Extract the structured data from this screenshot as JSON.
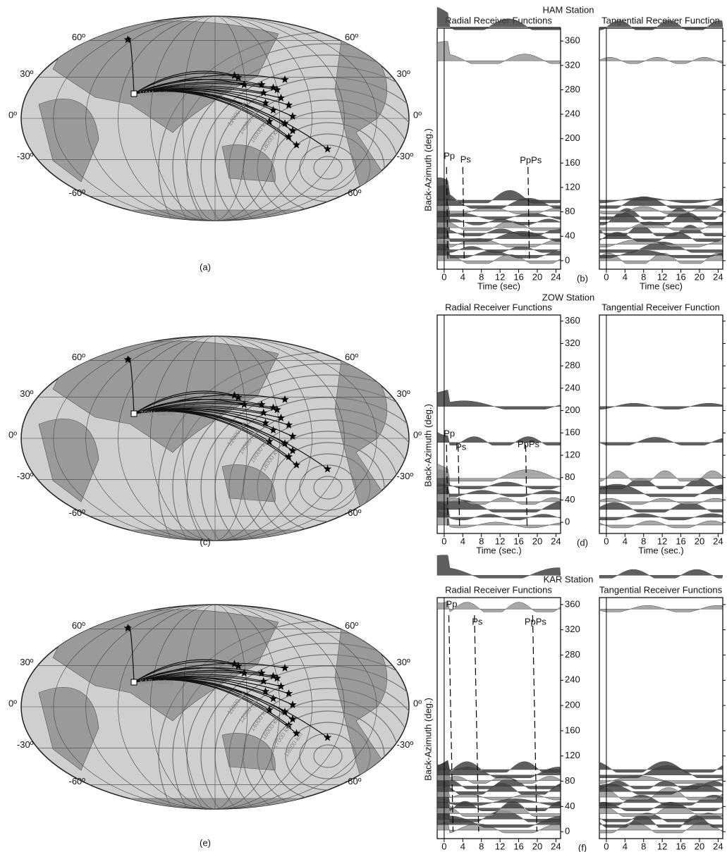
{
  "maps": [
    {
      "lat_labels": [
        "60º",
        "30º",
        "0º",
        "-30º",
        "-60º"
      ],
      "station_label": "HAM station",
      "contour_labels": [
        "12000 km",
        "14000 km",
        "16000 km",
        "18000 km"
      ],
      "caption": "(a)"
    },
    {
      "lat_labels": [
        "60º",
        "30º",
        "0º",
        "-30º",
        "-60º"
      ],
      "station_label": "ZOW station",
      "contour_labels": [
        "12000 km",
        "14000 km",
        "16000 km",
        "18000 km"
      ],
      "caption": "(c)"
    },
    {
      "lat_labels": [
        "60º",
        "30º",
        "0º",
        "-30º",
        "-60º"
      ],
      "station_label": "KAR station",
      "contour_labels": [
        "11000 km",
        "12000 km",
        "14000 km",
        "16000 km",
        "17000 km",
        "18000 km"
      ],
      "caption": "(e)"
    }
  ],
  "panels": [
    {
      "title": "HAM Station",
      "radial_title": "Radial Receiver Functions",
      "tangential_title": "Tangential Receiver Function",
      "y_label": "Back-Azimuth (deg.)",
      "x_label": "Time (sec)",
      "phases": [
        "Pp",
        "Ps",
        "PpPs"
      ],
      "caption": "(b)",
      "ylim": [
        -14,
        381
      ],
      "yticks": [
        0,
        40,
        80,
        120,
        160,
        200,
        240,
        280,
        320,
        360
      ],
      "xlim": [
        -1.5,
        25
      ],
      "xticks": [
        0,
        4,
        8,
        12,
        16,
        20,
        24
      ]
    },
    {
      "title": "ZOW Station",
      "radial_title": "Radial Receiver Functions",
      "tangential_title": "Tangential Receiver Function",
      "y_label": "Back-Azimuth (deg.)",
      "x_label": "Time (sec.)",
      "phases": [
        "Pp",
        "Ps",
        "PpPs"
      ],
      "caption": "(d)",
      "ylim": [
        -20,
        371
      ],
      "yticks": [
        0,
        40,
        80,
        120,
        160,
        200,
        240,
        280,
        320,
        360
      ],
      "xlim": [
        -1.5,
        25
      ],
      "xticks": [
        0,
        4,
        8,
        12,
        16,
        20,
        24
      ]
    },
    {
      "title": "KAR Station",
      "radial_title": "Radial Receiver Functions",
      "tangential_title": "Tangential Receiver Functions",
      "y_label": "Back-Azimuth (deg.)",
      "x_label": "Time (sec.)",
      "phases": [
        "Pp",
        "Ps",
        "PpPs"
      ],
      "caption": "(f)",
      "ylim": [
        -11,
        371
      ],
      "yticks": [
        0,
        40,
        80,
        120,
        160,
        200,
        240,
        280,
        320,
        360
      ],
      "xlim": [
        -1.5,
        25
      ],
      "xticks": [
        0,
        4,
        8,
        12,
        16,
        20,
        24
      ]
    }
  ]
}
